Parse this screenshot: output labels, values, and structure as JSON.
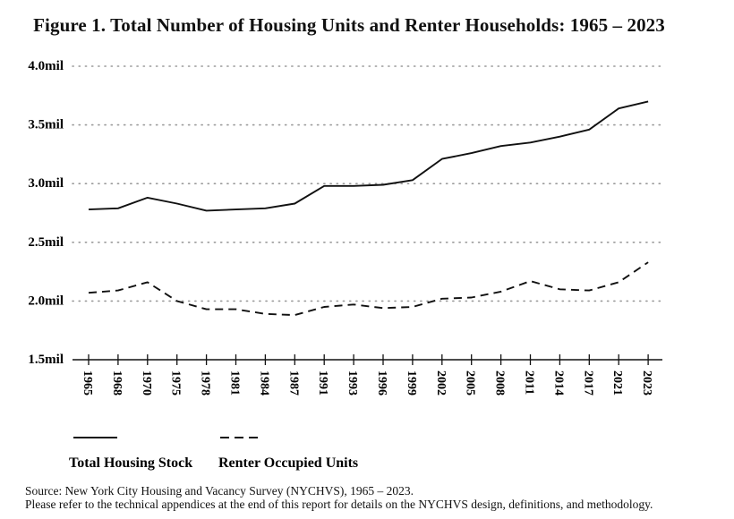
{
  "chart_data": {
    "type": "line",
    "title": "Figure 1. Total Number of Housing Units and Renter Households: 1965 – 2023",
    "categories": [
      "1965",
      "1968",
      "1970",
      "1975",
      "1978",
      "1981",
      "1984",
      "1987",
      "1991",
      "1993",
      "1996",
      "1999",
      "2002",
      "2005",
      "2008",
      "2011",
      "2014",
      "2017",
      "2021",
      "2023"
    ],
    "y_tick_values": [
      1.5,
      2.0,
      2.5,
      3.0,
      3.5,
      4.0
    ],
    "y_tick_labels": [
      "1.5mil",
      "2.0mil",
      "2.5mil",
      "3.0mil",
      "3.5mil",
      "4.0mil"
    ],
    "ylim": [
      1.5,
      4.0
    ],
    "grid": true,
    "legend_position": "bottom-left",
    "series": [
      {
        "name": "Total Housing Stock",
        "style": "solid",
        "values": [
          2.78,
          2.79,
          2.88,
          2.83,
          2.77,
          2.78,
          2.79,
          2.83,
          2.98,
          2.98,
          2.99,
          3.03,
          3.21,
          3.26,
          3.32,
          3.35,
          3.4,
          3.46,
          3.64,
          3.7
        ]
      },
      {
        "name": "Renter Occupied Units",
        "style": "dashed",
        "values": [
          2.07,
          2.09,
          2.16,
          2.0,
          1.93,
          1.93,
          1.89,
          1.88,
          1.95,
          1.97,
          1.94,
          1.95,
          2.02,
          2.03,
          2.08,
          2.17,
          2.1,
          2.09,
          2.16,
          2.33
        ]
      }
    ]
  },
  "source": {
    "line1": "Source: New York City Housing and Vacancy Survey (NYCHVS), 1965 – 2023.",
    "line2": "Please refer to the technical appendices at the end of this report for details on the NYCHVS design, definitions, and methodology."
  },
  "colors": {
    "line": "#111111",
    "grid": "#9a9a9a",
    "axis": "#111111"
  }
}
